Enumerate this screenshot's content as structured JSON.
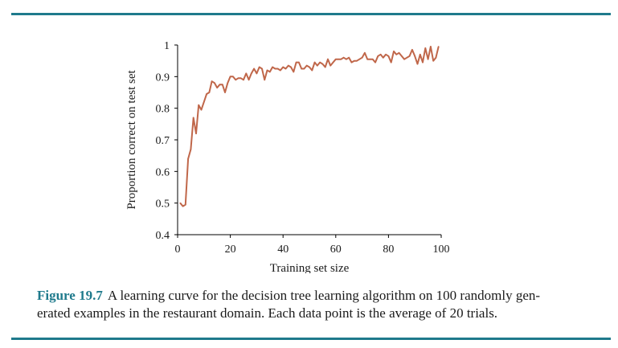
{
  "figure": {
    "label": "Figure 19.7",
    "caption_line1": "A learning curve for the decision tree learning algorithm on 100 randomly gen-",
    "caption_line2": "erated examples in the restaurant domain. Each data point is the average of 20 trials.",
    "rule_color": "#1f7a8c"
  },
  "chart_data": {
    "type": "line",
    "title": "",
    "xlabel": "Training set size",
    "ylabel": "Proportion correct on test set",
    "xlim": [
      0,
      100
    ],
    "ylim": [
      0.4,
      1
    ],
    "x_ticks": [
      0,
      20,
      40,
      60,
      80,
      100
    ],
    "y_ticks": [
      0.4,
      0.5,
      0.6,
      0.7,
      0.8,
      0.9,
      1
    ],
    "grid": false,
    "series_color": "#c0674a",
    "series": [
      {
        "x": [
          1,
          2,
          3,
          4,
          5,
          6,
          7,
          8,
          9,
          10,
          11,
          12,
          13,
          14,
          15,
          16,
          17,
          18,
          19,
          20,
          21,
          22,
          23,
          24,
          25,
          26,
          27,
          28,
          29,
          30,
          31,
          32,
          33,
          34,
          35,
          36,
          37,
          38,
          39,
          40,
          41,
          42,
          43,
          44,
          45,
          46,
          47,
          48,
          49,
          50,
          51,
          52,
          53,
          54,
          55,
          56,
          57,
          58,
          59,
          60,
          61,
          62,
          63,
          64,
          65,
          66,
          67,
          68,
          69,
          70,
          71,
          72,
          73,
          74,
          75,
          76,
          77,
          78,
          79,
          80,
          81,
          82,
          83,
          84,
          85,
          86,
          87,
          88,
          89,
          90,
          91,
          92,
          93,
          94,
          95,
          96,
          97,
          98,
          99
        ],
        "values": [
          0.5,
          0.49,
          0.495,
          0.64,
          0.67,
          0.77,
          0.72,
          0.81,
          0.795,
          0.82,
          0.845,
          0.85,
          0.885,
          0.88,
          0.865,
          0.875,
          0.875,
          0.85,
          0.88,
          0.9,
          0.9,
          0.89,
          0.895,
          0.895,
          0.89,
          0.91,
          0.89,
          0.91,
          0.925,
          0.91,
          0.93,
          0.925,
          0.89,
          0.92,
          0.915,
          0.93,
          0.925,
          0.925,
          0.92,
          0.93,
          0.925,
          0.935,
          0.93,
          0.915,
          0.945,
          0.945,
          0.925,
          0.925,
          0.935,
          0.93,
          0.92,
          0.945,
          0.935,
          0.945,
          0.94,
          0.93,
          0.955,
          0.935,
          0.945,
          0.955,
          0.955,
          0.955,
          0.96,
          0.955,
          0.96,
          0.945,
          0.95,
          0.95,
          0.955,
          0.96,
          0.975,
          0.955,
          0.955,
          0.955,
          0.945,
          0.965,
          0.97,
          0.96,
          0.97,
          0.965,
          0.945,
          0.98,
          0.97,
          0.975,
          0.965,
          0.955,
          0.96,
          0.965,
          0.985,
          0.965,
          0.94,
          0.97,
          0.945,
          0.99,
          0.955,
          0.995,
          0.95,
          0.96,
          0.995
        ]
      }
    ]
  }
}
